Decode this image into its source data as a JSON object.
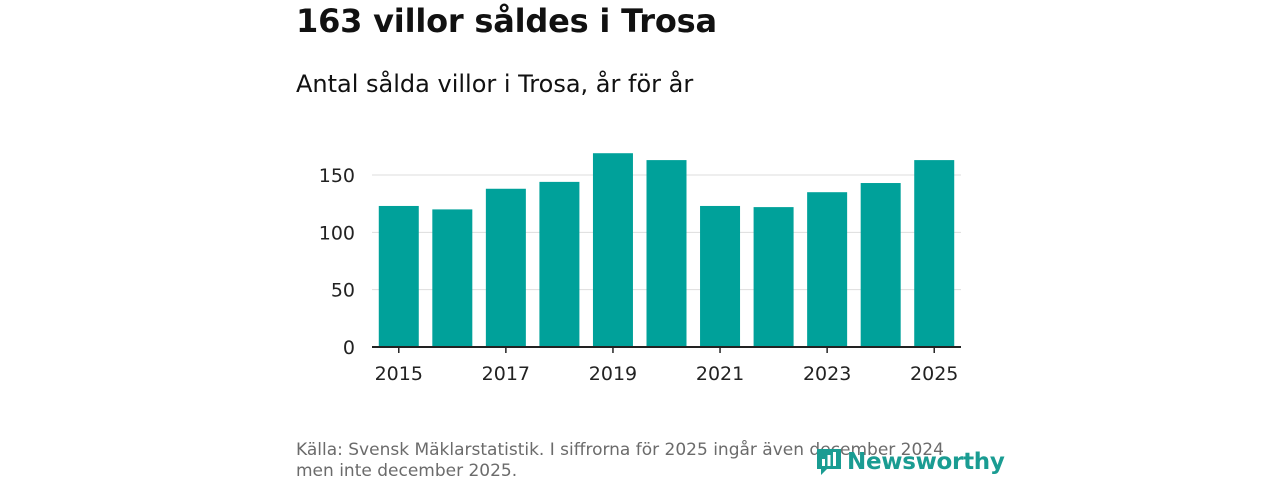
{
  "header": {
    "title": "163 villor såldes i Trosa",
    "subtitle": "Antal sålda villor i Trosa, år för år"
  },
  "footer": {
    "source": "Källa: Svensk Mäklarstatistik. I siffrorna för 2025 ingår även december 2024 men inte december 2025.",
    "brand": "Newsworthy"
  },
  "colors": {
    "bar": "#00a19a",
    "brand": "#1a9c92",
    "grid": "#dddddd",
    "axis": "#222222"
  },
  "chart_data": {
    "type": "bar",
    "title": "163 villor såldes i Trosa",
    "subtitle": "Antal sålda villor i Trosa, år för år",
    "xlabel": "",
    "ylabel": "",
    "categories": [
      "2015",
      "2016",
      "2017",
      "2018",
      "2019",
      "2020",
      "2021",
      "2022",
      "2023",
      "2024",
      "2025"
    ],
    "values": [
      123,
      120,
      138,
      144,
      169,
      163,
      123,
      122,
      135,
      143,
      163
    ],
    "x_tick_labels": [
      "2015",
      "2017",
      "2019",
      "2021",
      "2023",
      "2025"
    ],
    "y_ticks": [
      0,
      50,
      100,
      150
    ],
    "y_tick_labels": [
      "0",
      "50",
      "100",
      "150"
    ],
    "ylim": [
      0,
      175
    ],
    "grid": true,
    "legend": "none"
  }
}
